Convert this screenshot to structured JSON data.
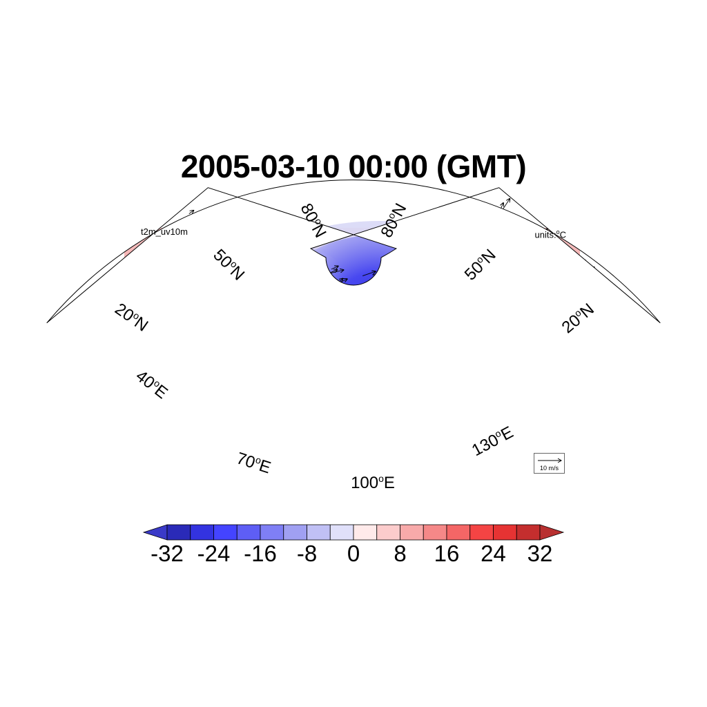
{
  "title": "2005-03-10 00:00 (GMT)",
  "left_label": "t2m_uv10m",
  "right_label": {
    "prefix": "units:",
    "degree": "o",
    "unit": "C"
  },
  "lat_labels": [
    {
      "value": "80",
      "suffix": "N"
    },
    {
      "value": "80",
      "suffix": "N"
    },
    {
      "value": "50",
      "suffix": "N"
    },
    {
      "value": "50",
      "suffix": "N"
    },
    {
      "value": "20",
      "suffix": "N"
    },
    {
      "value": "20",
      "suffix": "N"
    }
  ],
  "lon_labels": [
    {
      "value": "40",
      "suffix": "E"
    },
    {
      "value": "70",
      "suffix": "E"
    },
    {
      "value": "100",
      "suffix": "E"
    },
    {
      "value": "130",
      "suffix": "E"
    }
  ],
  "reference_vector": {
    "label": "10 m/s",
    "magnitude": 10
  },
  "colorbar": {
    "ticks": [
      "-32",
      "-24",
      "-16",
      "-8",
      "0",
      "8",
      "16",
      "24",
      "32"
    ],
    "levels": [
      -32,
      -28,
      -24,
      -20,
      -16,
      -12,
      -8,
      -4,
      0,
      4,
      8,
      12,
      16,
      20,
      24,
      28,
      32
    ],
    "colors": [
      "#2a2ab8",
      "#3333e0",
      "#4444ff",
      "#5e5ef5",
      "#7f7ff5",
      "#a0a0f2",
      "#c0c0f5",
      "#e0e0fa",
      "#ffeaea",
      "#fccccc",
      "#f8aaaa",
      "#f58888",
      "#f46666",
      "#f44444",
      "#e63333",
      "#c42e2e"
    ],
    "under_color": "#3a3ac8",
    "over_color": "#b83030"
  },
  "map": {
    "projection": "lambert-conic",
    "lat_range": [
      20,
      80
    ],
    "lon_range": [
      40,
      130
    ],
    "colors": {
      "cold": "#3a3ae8",
      "warm": "#f04040",
      "plateau_contour": "#8b4513",
      "land_outline": "#555555"
    }
  }
}
